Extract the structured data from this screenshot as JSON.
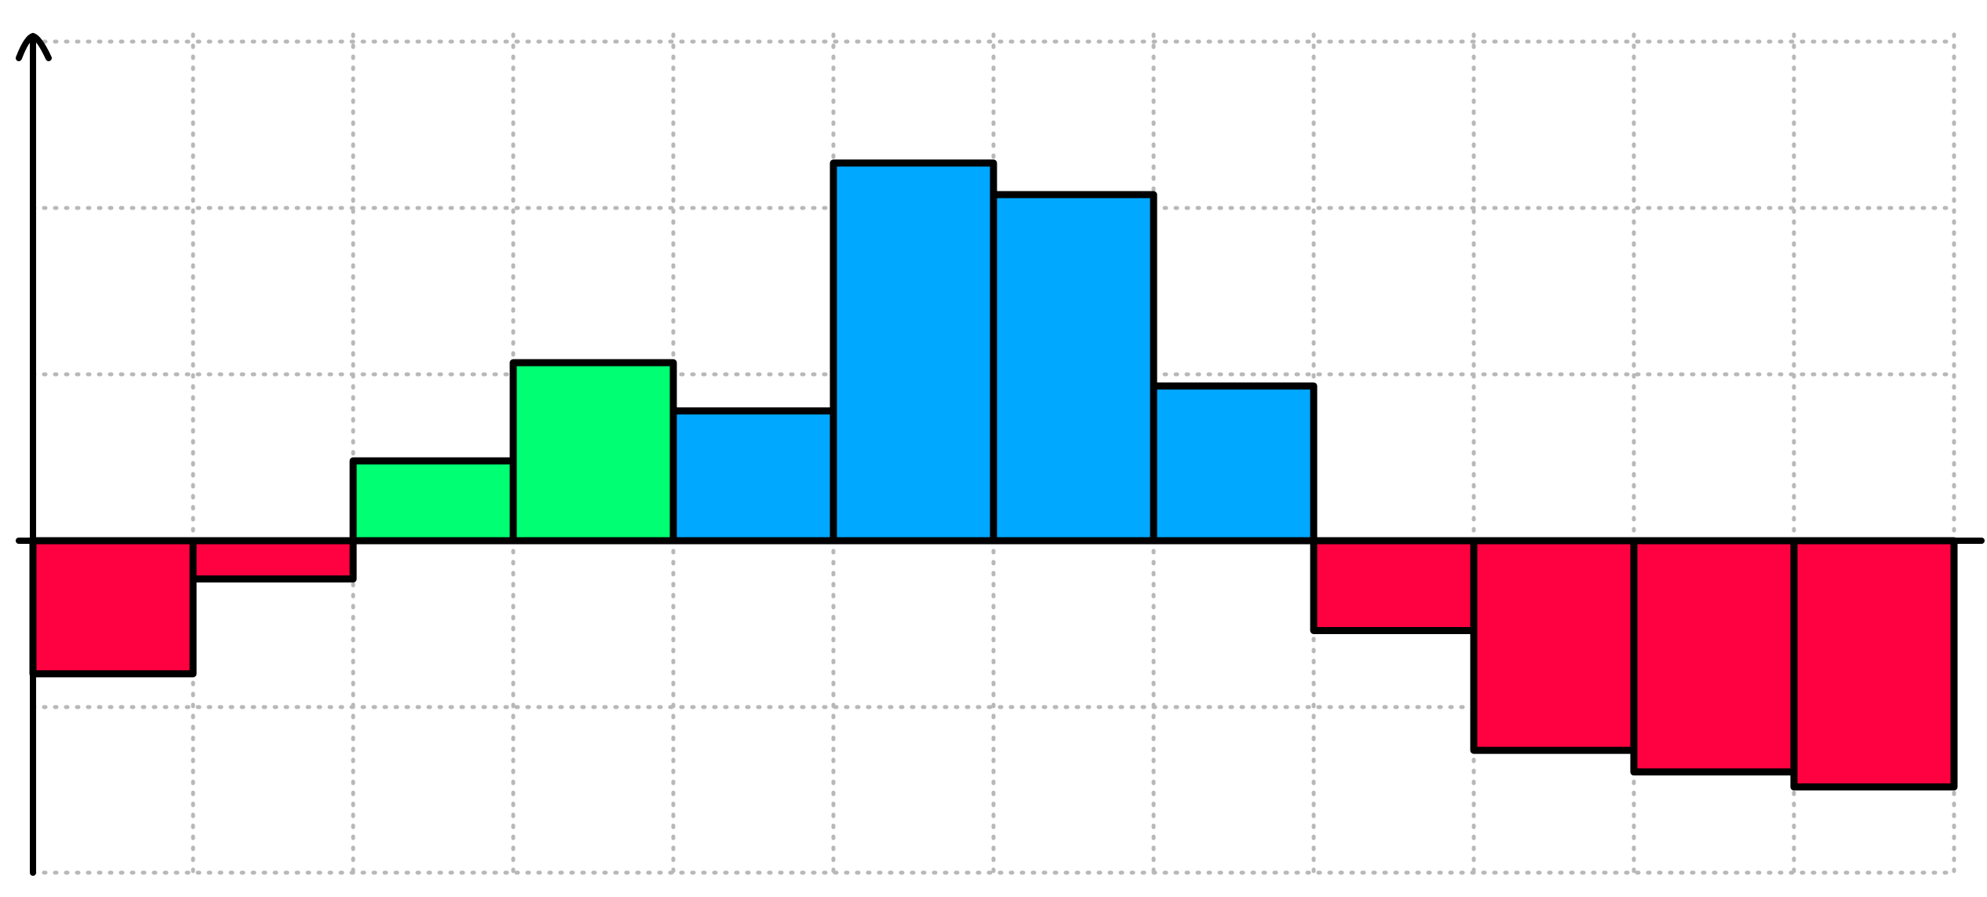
{
  "chart_data": {
    "type": "bar",
    "xlabel": "",
    "ylabel": "",
    "grid": true,
    "legend": "none",
    "ylim": [
      -2.0,
      3.0
    ],
    "colors": {
      "negative": "#ff0040",
      "positive_low": "#00ff73",
      "positive_high": "#00a8ff",
      "grid": "#b8b8b8",
      "outline": "#000000"
    },
    "values": [
      -0.8,
      -0.23,
      0.48,
      1.07,
      0.78,
      2.27,
      2.08,
      0.93,
      -0.54,
      -1.26,
      -1.39,
      -1.48
    ],
    "bar_colors": [
      "negative",
      "negative",
      "positive_low",
      "positive_low",
      "positive_high",
      "positive_high",
      "positive_high",
      "positive_high",
      "negative",
      "negative",
      "negative",
      "negative"
    ]
  }
}
